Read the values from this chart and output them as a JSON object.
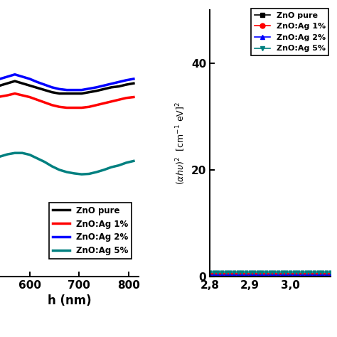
{
  "left_plot": {
    "xlabel": "h (nm)",
    "xlim": [
      540,
      820
    ],
    "ylim": [
      0.45,
      1.05
    ],
    "xticks": [
      600,
      700,
      800
    ],
    "lines": [
      {
        "label": "ZnO pure",
        "color": "#000000",
        "linewidth": 2.5,
        "x": [
          540,
          555,
          570,
          585,
          600,
          615,
          630,
          645,
          660,
          675,
          690,
          705,
          720,
          735,
          750,
          765,
          780,
          795,
          810
        ],
        "y": [
          0.88,
          0.885,
          0.89,
          0.885,
          0.88,
          0.875,
          0.87,
          0.865,
          0.862,
          0.862,
          0.862,
          0.862,
          0.865,
          0.868,
          0.872,
          0.876,
          0.878,
          0.882,
          0.885
        ]
      },
      {
        "label": "ZnO:Ag 1%",
        "color": "#ff0000",
        "linewidth": 2.5,
        "x": [
          540,
          555,
          570,
          585,
          600,
          615,
          630,
          645,
          660,
          675,
          690,
          705,
          720,
          735,
          750,
          765,
          780,
          795,
          810
        ],
        "y": [
          0.855,
          0.858,
          0.862,
          0.858,
          0.854,
          0.848,
          0.842,
          0.836,
          0.832,
          0.83,
          0.83,
          0.83,
          0.832,
          0.836,
          0.84,
          0.844,
          0.848,
          0.852,
          0.854
        ]
      },
      {
        "label": "ZnO:Ag 2%",
        "color": "#0000ff",
        "linewidth": 2.5,
        "x": [
          540,
          555,
          570,
          585,
          600,
          615,
          630,
          645,
          660,
          675,
          690,
          705,
          720,
          735,
          750,
          765,
          780,
          795,
          810
        ],
        "y": [
          0.895,
          0.9,
          0.905,
          0.9,
          0.895,
          0.888,
          0.882,
          0.876,
          0.872,
          0.87,
          0.87,
          0.87,
          0.873,
          0.876,
          0.88,
          0.884,
          0.888,
          0.892,
          0.895
        ]
      },
      {
        "label": "ZnO:Ag 5%",
        "color": "#008080",
        "linewidth": 2.5,
        "x": [
          540,
          555,
          570,
          585,
          600,
          615,
          630,
          645,
          660,
          675,
          690,
          705,
          720,
          735,
          750,
          765,
          780,
          795,
          810
        ],
        "y": [
          0.72,
          0.725,
          0.728,
          0.728,
          0.724,
          0.716,
          0.708,
          0.698,
          0.69,
          0.685,
          0.682,
          0.68,
          0.681,
          0.685,
          0.69,
          0.696,
          0.7,
          0.706,
          0.71
        ]
      }
    ],
    "legend_labels": [
      "ZnO pure",
      "ZnO:Ag 1%",
      "ZnO:Ag 2%",
      "ZnO:Ag 5%"
    ],
    "legend_colors": [
      "#000000",
      "#ff0000",
      "#0000ff",
      "#008080"
    ]
  },
  "right_plot": {
    "ylabel": "(αhυ)²  [cm⁻¹ eV]²",
    "xlim": [
      2.8,
      3.1
    ],
    "ylim": [
      0,
      50
    ],
    "xticks": [
      2.8,
      2.9,
      3.0
    ],
    "yticks": [
      0,
      20,
      40
    ],
    "lines": [
      {
        "label": "ZnO pure",
        "color": "#000000",
        "marker": "s",
        "markersize": 3.5,
        "y_val": 0.3
      },
      {
        "label": "ZnO:Ag 1%",
        "color": "#ff0000",
        "marker": "o",
        "markersize": 3.5,
        "y_val": 0.5
      },
      {
        "label": "ZnO:Ag 2%",
        "color": "#0000ff",
        "marker": "^",
        "markersize": 3.5,
        "y_val": 0.2
      },
      {
        "label": "ZnO:Ag 5%",
        "color": "#008080",
        "marker": "v",
        "markersize": 3.5,
        "y_val": 0.8
      }
    ],
    "legend_labels": [
      "ZnO pure",
      "ZnO:Ag 1%",
      "ZnO:Ag 2%",
      "ZnO:Ag 5%"
    ],
    "legend_colors": [
      "#000000",
      "#ff0000",
      "#0000ff",
      "#008080"
    ],
    "legend_markers": [
      "s",
      "o",
      "^",
      "v"
    ]
  },
  "background_color": "#ffffff"
}
